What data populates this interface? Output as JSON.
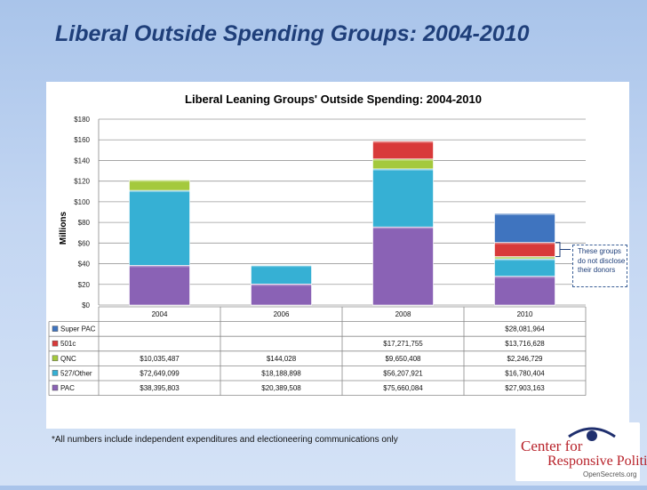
{
  "slide": {
    "title": "Liberal Outside Spending Groups: 2004-2010",
    "footnote": "*All numbers include independent expenditures and electioneering communications only",
    "callout_text": "These groups do not disclose their donors"
  },
  "logo": {
    "line1": "Center for",
    "line2": "Responsive Politics",
    "line3": "OpenSecrets.org"
  },
  "colors": {
    "PAC": "#8a62b5",
    "527/Other": "#36b0d4",
    "QNC": "#a4c93d",
    "501c": "#d83a3a",
    "Super PAC": "#3f74bf"
  },
  "chart_data": {
    "type": "bar",
    "stacked": true,
    "title": "Liberal Leaning Groups' Outside Spending: 2004-2010",
    "xlabel": "",
    "ylabel": "Millions",
    "ylim": [
      0,
      180
    ],
    "yticks": [
      0,
      20,
      40,
      60,
      80,
      100,
      120,
      140,
      160,
      180
    ],
    "ytick_labels": [
      "$0",
      "$20",
      "$40",
      "$60",
      "$80",
      "$100",
      "$120",
      "$140",
      "$160",
      "$180"
    ],
    "grid": true,
    "legend": "data-table",
    "categories": [
      "2004",
      "2006",
      "2008",
      "2010"
    ],
    "series": [
      {
        "name": "PAC",
        "values": [
          38.395803,
          20.389508,
          75.660084,
          27.903163
        ],
        "labels": [
          "$38,395,803",
          "$20,389,508",
          "$75,660,084",
          "$27,903,163"
        ]
      },
      {
        "name": "527/Other",
        "values": [
          72.649099,
          18.188898,
          56.207921,
          16.780404
        ],
        "labels": [
          "$72,649,099",
          "$18,188,898",
          "$56,207,921",
          "$16,780,404"
        ]
      },
      {
        "name": "QNC",
        "values": [
          10.035487,
          0.144028,
          9.650408,
          2.246729
        ],
        "labels": [
          "$10,035,487",
          "$144,028",
          "$9,650,408",
          "$2,246,729"
        ]
      },
      {
        "name": "501c",
        "values": [
          0,
          0,
          17.271755,
          13.716628
        ],
        "labels": [
          "",
          "",
          "$17,271,755",
          "$13,716,628"
        ]
      },
      {
        "name": "Super PAC",
        "values": [
          0,
          0,
          0,
          28.081964
        ],
        "labels": [
          "",
          "",
          "",
          "$28,081,964"
        ]
      }
    ],
    "table_row_order": [
      "Super PAC",
      "501c",
      "QNC",
      "527/Other",
      "PAC"
    ]
  }
}
